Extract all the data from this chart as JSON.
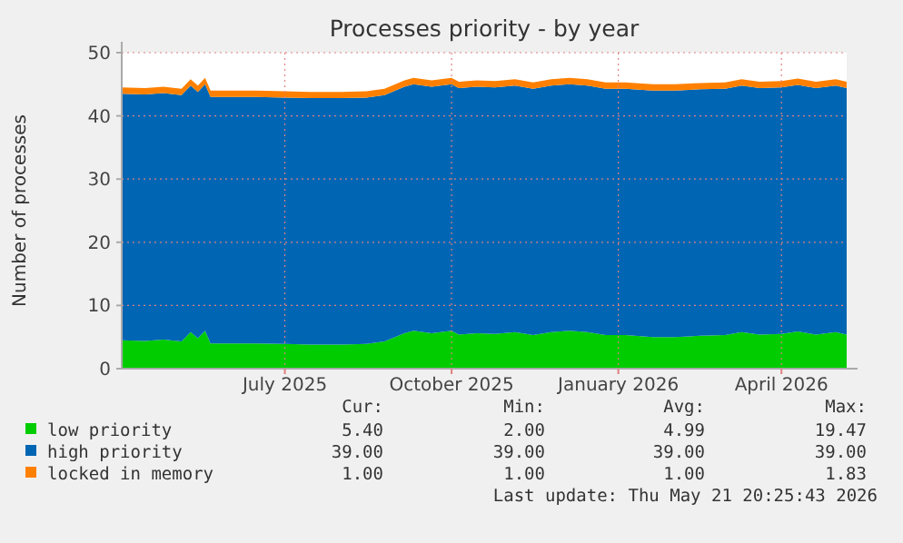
{
  "chart_data": {
    "type": "area",
    "title": "Processes priority - by year",
    "ylabel": "Number of processes",
    "stacked": true,
    "grid": true,
    "legend": "bottom",
    "x": [
      "2025-04-02",
      "2025-04-15",
      "2025-04-25",
      "2025-05-05",
      "2025-05-10",
      "2025-05-14",
      "2025-05-18",
      "2025-05-21",
      "2025-06-01",
      "2025-06-15",
      "2025-07-01",
      "2025-07-15",
      "2025-08-01",
      "2025-08-15",
      "2025-08-25",
      "2025-09-05",
      "2025-09-10",
      "2025-09-20",
      "2025-10-01",
      "2025-10-05",
      "2025-10-15",
      "2025-10-25",
      "2025-11-05",
      "2025-11-15",
      "2025-11-25",
      "2025-12-05",
      "2025-12-15",
      "2025-12-25",
      "2026-01-05",
      "2026-01-20",
      "2026-02-01",
      "2026-02-15",
      "2026-03-01",
      "2026-03-10",
      "2026-03-20",
      "2026-04-01",
      "2026-04-10",
      "2026-04-20",
      "2026-05-01",
      "2026-05-07"
    ],
    "series": [
      {
        "name": "low priority",
        "color": "#00cc00",
        "values": [
          4.5,
          4.4,
          4.6,
          4.3,
          5.8,
          4.8,
          6.0,
          4.0,
          4.0,
          4.0,
          3.9,
          3.8,
          3.8,
          3.9,
          4.3,
          5.6,
          6.0,
          5.6,
          6.0,
          5.4,
          5.6,
          5.5,
          5.8,
          5.3,
          5.8,
          6.0,
          5.8,
          5.3,
          5.3,
          5.0,
          5.0,
          5.2,
          5.3,
          5.8,
          5.4,
          5.5,
          5.9,
          5.4,
          5.8,
          5.4
        ]
      },
      {
        "name": "high priority",
        "color": "#0066b3",
        "values": [
          39,
          39,
          39,
          39,
          39,
          39,
          39,
          39,
          39,
          39,
          39,
          39,
          39,
          39,
          39,
          39,
          39,
          39,
          39,
          39,
          39,
          39,
          39,
          39,
          39,
          39,
          39,
          39,
          39,
          39,
          39,
          39,
          39,
          39,
          39,
          39,
          39,
          39,
          39,
          39
        ]
      },
      {
        "name": "locked in memory",
        "color": "#ff8000",
        "values": [
          1,
          1,
          1,
          1,
          1,
          1,
          1,
          1,
          1,
          1,
          1,
          1,
          1,
          1,
          1,
          1,
          1,
          1,
          1,
          1,
          1,
          1,
          1,
          1,
          1,
          1,
          1,
          1,
          1,
          1,
          1,
          1,
          1,
          1,
          1,
          1,
          1,
          1,
          1,
          1
        ]
      }
    ],
    "xlim": [
      "2025-04-02",
      "2026-05-07"
    ],
    "xticks": [
      {
        "value": "2025-07-01",
        "label": "July 2025"
      },
      {
        "value": "2025-10-01",
        "label": "October 2025"
      },
      {
        "value": "2026-01-01",
        "label": "January 2026"
      },
      {
        "value": "2026-04-01",
        "label": "April 2026"
      }
    ],
    "ylim": [
      0,
      50
    ],
    "yticks": [
      0,
      10,
      20,
      30,
      40,
      50
    ],
    "annotations": [
      "Cur:",
      "Min:",
      "Avg:",
      "Max:",
      "5.40",
      "2.00",
      "4.99",
      "19.47",
      "39.00",
      "39.00",
      "39.00",
      "39.00",
      "1.00",
      "1.00",
      "1.00",
      "1.83",
      "Last update: Thu May 21 20:25:43 2026"
    ]
  }
}
